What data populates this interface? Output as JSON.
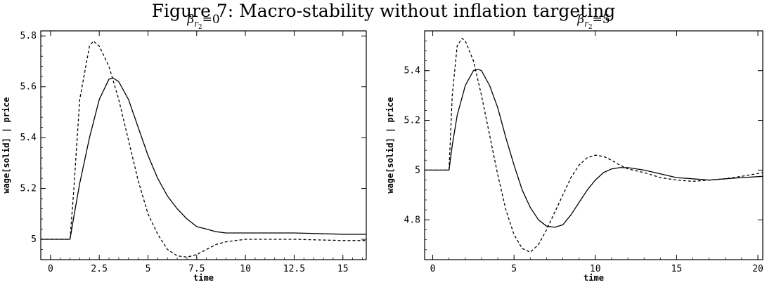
{
  "figure_title": "Figure 7: Macro-stability without inflation targeting",
  "chart_data": [
    {
      "type": "line",
      "title_symbol": "β",
      "title_subscript": "r",
      "title_subsubscript": "2",
      "title_suffix": "=0",
      "xlabel": "time",
      "ylabel": "wage[solid] | price",
      "xlim": [
        -0.5,
        16.2
      ],
      "ylim": [
        4.92,
        5.82
      ],
      "xticks": [
        0,
        2.5,
        5,
        7.5,
        10,
        12.5,
        15
      ],
      "xtick_labels": [
        "0",
        "2.5",
        "5",
        "7.5",
        "10",
        "12.5",
        "15"
      ],
      "yticks": [
        5,
        5.2,
        5.4,
        5.6,
        5.8
      ],
      "ytick_labels": [
        "5",
        "5.2",
        "5.4",
        "5.6",
        "5.8"
      ],
      "grid": false,
      "series": [
        {
          "style": "solid",
          "x": [
            -0.5,
            0,
            0.5,
            1.0,
            1.2,
            1.5,
            2.0,
            2.5,
            3.0,
            3.2,
            3.5,
            4.0,
            4.5,
            5.0,
            5.5,
            6.0,
            6.5,
            7.0,
            7.5,
            8.0,
            8.5,
            9.0,
            10,
            12.5,
            15,
            16.2
          ],
          "y": [
            5.0,
            5.0,
            5.0,
            5.0,
            5.09,
            5.22,
            5.4,
            5.55,
            5.63,
            5.635,
            5.62,
            5.55,
            5.44,
            5.33,
            5.24,
            5.17,
            5.12,
            5.08,
            5.05,
            5.04,
            5.03,
            5.025,
            5.025,
            5.025,
            5.02,
            5.02
          ]
        },
        {
          "style": "dashed",
          "x": [
            -0.5,
            0,
            0.5,
            1.0,
            1.2,
            1.5,
            2.0,
            2.2,
            2.5,
            3.0,
            3.5,
            4.0,
            4.5,
            5.0,
            5.5,
            6.0,
            6.5,
            7.0,
            7.5,
            8.0,
            8.5,
            9.0,
            10,
            12.5,
            15,
            16.2
          ],
          "y": [
            5.0,
            5.0,
            5.0,
            5.0,
            5.2,
            5.55,
            5.76,
            5.78,
            5.76,
            5.68,
            5.55,
            5.39,
            5.23,
            5.1,
            5.02,
            4.96,
            4.935,
            4.93,
            4.94,
            4.96,
            4.98,
            4.99,
            5.0,
            5.0,
            4.995,
            4.995
          ]
        }
      ]
    },
    {
      "type": "line",
      "title_symbol": "β",
      "title_subscript": "r",
      "title_subsubscript": "2",
      "title_suffix": "=5",
      "xlabel": "time",
      "ylabel": "wage[solid] | price",
      "xlim": [
        -0.5,
        20.3
      ],
      "ylim": [
        4.64,
        5.56
      ],
      "xticks": [
        0,
        5,
        10,
        15,
        20
      ],
      "xtick_labels": [
        "0",
        "5",
        "10",
        "15",
        "20"
      ],
      "yticks": [
        4.8,
        5,
        5.2,
        5.4
      ],
      "ytick_labels": [
        "4.8",
        "5",
        "5.2",
        "5.4"
      ],
      "grid": false,
      "series": [
        {
          "style": "solid",
          "x": [
            -0.5,
            0,
            0.5,
            1.0,
            1.2,
            1.5,
            2.0,
            2.5,
            2.8,
            3.0,
            3.5,
            4.0,
            4.5,
            5.0,
            5.5,
            6.0,
            6.5,
            7.0,
            7.5,
            8.0,
            8.5,
            9.0,
            9.5,
            10,
            10.5,
            11,
            11.5,
            12,
            13,
            14,
            15,
            16,
            17,
            18,
            19,
            20.3
          ],
          "y": [
            5.0,
            5.0,
            5.0,
            5.0,
            5.1,
            5.22,
            5.34,
            5.4,
            5.405,
            5.4,
            5.34,
            5.25,
            5.13,
            5.02,
            4.92,
            4.85,
            4.8,
            4.775,
            4.77,
            4.78,
            4.82,
            4.87,
            4.92,
            4.96,
            4.99,
            5.005,
            5.01,
            5.01,
            5.0,
            4.985,
            4.97,
            4.965,
            4.96,
            4.965,
            4.97,
            4.975
          ]
        },
        {
          "style": "dashed",
          "x": [
            -0.5,
            0,
            0.5,
            1.0,
            1.2,
            1.5,
            1.8,
            2.0,
            2.5,
            3.0,
            3.5,
            4.0,
            4.5,
            5.0,
            5.5,
            6.0,
            6.5,
            7.0,
            7.5,
            8.0,
            8.5,
            9.0,
            9.5,
            10,
            10.5,
            11,
            11.5,
            12,
            13,
            14,
            15,
            16,
            17,
            18,
            19,
            20.3
          ],
          "y": [
            5.0,
            5.0,
            5.0,
            5.0,
            5.3,
            5.5,
            5.53,
            5.52,
            5.44,
            5.3,
            5.14,
            4.98,
            4.84,
            4.74,
            4.685,
            4.67,
            4.7,
            4.76,
            4.83,
            4.9,
            4.97,
            5.02,
            5.05,
            5.06,
            5.055,
            5.04,
            5.02,
            5.005,
            4.99,
            4.97,
            4.96,
            4.955,
            4.96,
            4.965,
            4.975,
            4.99
          ]
        }
      ]
    }
  ]
}
